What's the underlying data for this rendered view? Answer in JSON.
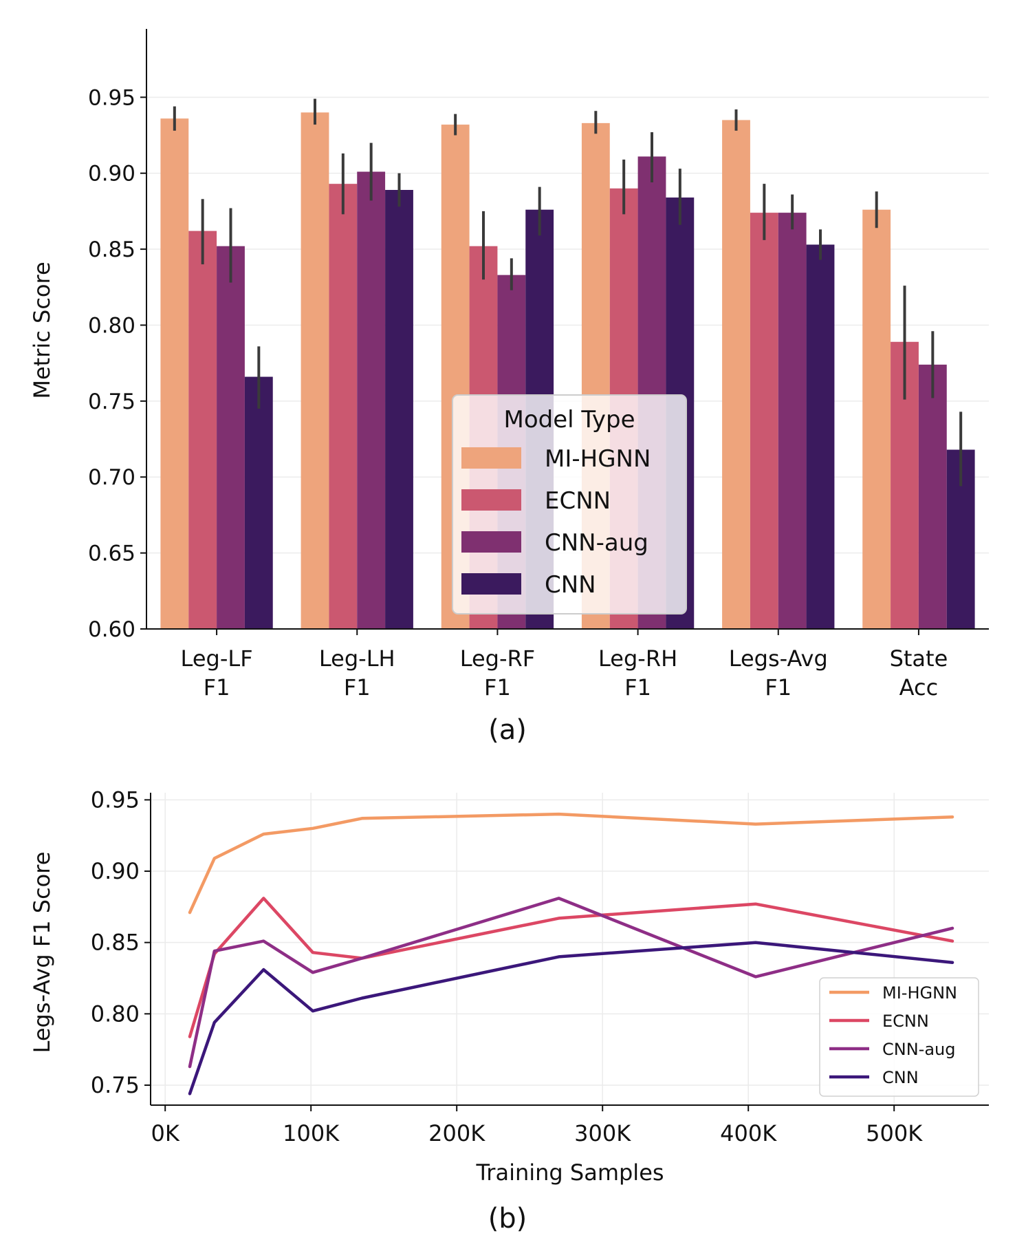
{
  "chart_data": [
    {
      "type": "bar",
      "caption": "(a)",
      "title": "",
      "xlabel": "",
      "ylabel": "Metric Score",
      "ylim": [
        0.6,
        0.995
      ],
      "yticks": [
        "0.60",
        "0.65",
        "0.70",
        "0.75",
        "0.80",
        "0.85",
        "0.90",
        "0.95"
      ],
      "yticks_values": [
        0.6,
        0.65,
        0.7,
        0.75,
        0.8,
        0.85,
        0.9,
        0.95
      ],
      "grid": "horizontal",
      "categories": [
        [
          "Leg-LF",
          "F1"
        ],
        [
          "Leg-LH",
          "F1"
        ],
        [
          "Leg-RF",
          "F1"
        ],
        [
          "Leg-RH",
          "F1"
        ],
        [
          "Legs-Avg",
          "F1"
        ],
        [
          "State",
          "Acc"
        ]
      ],
      "legend": {
        "title": "Model Type",
        "placement": "lower-center"
      },
      "series": [
        {
          "name": "MI-HGNN",
          "color": "#eea47c",
          "values": [
            0.936,
            0.94,
            0.932,
            0.933,
            0.935,
            0.876
          ],
          "err_low": [
            0.928,
            0.932,
            0.925,
            0.926,
            0.928,
            0.864
          ],
          "err_high": [
            0.944,
            0.949,
            0.939,
            0.941,
            0.942,
            0.888
          ]
        },
        {
          "name": "ECNN",
          "color": "#cb5870",
          "values": [
            0.862,
            0.893,
            0.852,
            0.89,
            0.874,
            0.789
          ],
          "err_low": [
            0.84,
            0.873,
            0.83,
            0.873,
            0.856,
            0.751
          ],
          "err_high": [
            0.883,
            0.913,
            0.875,
            0.909,
            0.893,
            0.826
          ]
        },
        {
          "name": "CNN-aug",
          "color": "#7f3070",
          "values": [
            0.852,
            0.901,
            0.833,
            0.911,
            0.874,
            0.774
          ],
          "err_low": [
            0.828,
            0.882,
            0.823,
            0.894,
            0.863,
            0.752
          ],
          "err_high": [
            0.877,
            0.92,
            0.844,
            0.927,
            0.886,
            0.796
          ]
        },
        {
          "name": "CNN",
          "color": "#3b1a5e",
          "values": [
            0.766,
            0.889,
            0.876,
            0.884,
            0.853,
            0.718
          ],
          "err_low": [
            0.745,
            0.878,
            0.859,
            0.866,
            0.843,
            0.694
          ],
          "err_high": [
            0.786,
            0.9,
            0.891,
            0.903,
            0.863,
            0.743
          ]
        }
      ]
    },
    {
      "type": "line",
      "caption": "(b)",
      "title": "",
      "xlabel": "Training Samples",
      "ylabel": "Legs-Avg F1 Score",
      "xlim": [
        -10000,
        565000
      ],
      "ylim": [
        0.736,
        0.955
      ],
      "xticks": [
        "0K",
        "100K",
        "200K",
        "300K",
        "400K",
        "500K"
      ],
      "xticks_values": [
        0,
        100000,
        200000,
        300000,
        400000,
        500000
      ],
      "yticks": [
        "0.75",
        "0.80",
        "0.85",
        "0.90",
        "0.95"
      ],
      "yticks_values": [
        0.75,
        0.8,
        0.85,
        0.9,
        0.95
      ],
      "grid": "both",
      "legend": {
        "placement": "lower-right"
      },
      "x": [
        16875,
        33750,
        67500,
        101250,
        135000,
        270000,
        405000,
        540000
      ],
      "series": [
        {
          "name": "MI-HGNN",
          "color": "#f39a64",
          "x": [
            16875,
            33750,
            67500,
            101250,
            135000,
            270000,
            405000,
            540000
          ],
          "values": [
            0.871,
            0.909,
            0.926,
            0.93,
            0.937,
            0.94,
            0.933,
            0.938
          ]
        },
        {
          "name": "ECNN",
          "color": "#dc4764",
          "x": [
            16875,
            33750,
            67500,
            101250,
            135000,
            270000,
            405000,
            540000
          ],
          "values": [
            0.784,
            0.842,
            0.881,
            0.843,
            0.839,
            0.867,
            0.877,
            0.851
          ]
        },
        {
          "name": "CNN-aug",
          "color": "#8e2e86",
          "x": [
            16875,
            33750,
            67500,
            101250,
            135000,
            270000,
            405000,
            540000
          ],
          "values": [
            0.763,
            0.844,
            0.851,
            0.829,
            0.839,
            0.881,
            0.826,
            0.86
          ]
        },
        {
          "name": "CNN",
          "color": "#3b177a",
          "x": [
            16875,
            33750,
            67500,
            101250,
            135000,
            270000,
            405000,
            540000
          ],
          "values": [
            0.744,
            0.794,
            0.831,
            0.802,
            0.811,
            0.84,
            0.85,
            0.836
          ]
        }
      ]
    }
  ]
}
